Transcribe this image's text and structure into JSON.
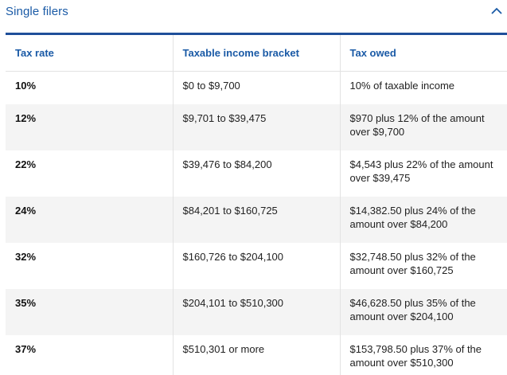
{
  "section": {
    "title": "Single filers"
  },
  "table": {
    "headers": [
      "Tax rate",
      "Taxable income bracket",
      "Tax owed"
    ],
    "rows": [
      {
        "rate": "10%",
        "bracket": "$0 to $9,700",
        "owed": "10% of taxable income"
      },
      {
        "rate": "12%",
        "bracket": "$9,701 to $39,475",
        "owed": "$970 plus 12% of the amount over $9,700"
      },
      {
        "rate": "22%",
        "bracket": "$39,476 to $84,200",
        "owed": "$4,543 plus 22% of the amount over $39,475"
      },
      {
        "rate": "24%",
        "bracket": "$84,201 to $160,725",
        "owed": "$14,382.50 plus 24% of the amount over $84,200"
      },
      {
        "rate": "32%",
        "bracket": "$160,726 to $204,100",
        "owed": "$32,748.50 plus 32% of the amount over $160,725"
      },
      {
        "rate": "35%",
        "bracket": "$204,101 to $510,300",
        "owed": "$46,628.50 plus 35% of the amount over $204,100"
      },
      {
        "rate": "37%",
        "bracket": "$510,301 or more",
        "owed": "$153,798.50 plus 37% of the amount over $510,300"
      }
    ]
  },
  "icons": {
    "collapse": "chevron-up-icon"
  },
  "colors": {
    "accent": "#1a5aa6",
    "table_top_border": "#1f4f9a",
    "stripe": "#f4f4f4"
  }
}
